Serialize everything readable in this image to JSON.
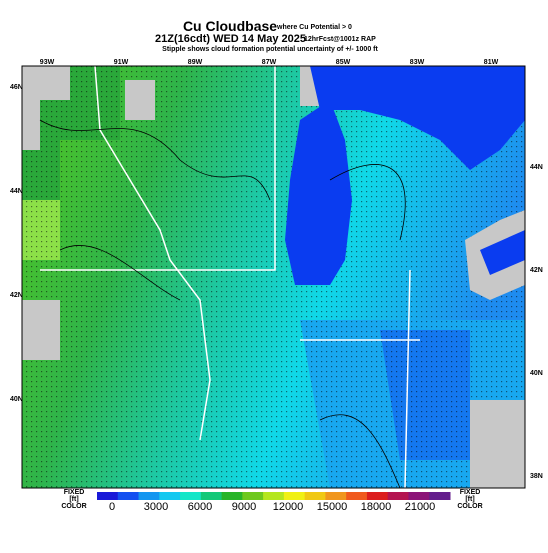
{
  "header": {
    "title": "Cu Cloudbase",
    "title_note": "where Cu Potential > 0",
    "valid": "21Z(16cdt) WED 14 May 2025",
    "forecast": "12hrFcst@1001z RAP",
    "subtitle": "Stipple shows cloud formation potential uncertainty of +/- 1000 ft"
  },
  "map": {
    "top_labels": [
      "93W",
      "91W",
      "89W",
      "87W",
      "85W",
      "83W",
      "81W"
    ],
    "left_labels": [
      "46N",
      "44N",
      "42N",
      "40N"
    ],
    "right_labels": [
      "44N",
      "42N",
      "40N",
      "38N"
    ]
  },
  "colorbar": {
    "left_label": [
      "FIXED",
      "[ft]",
      "COLOR"
    ],
    "right_label": [
      "FIXED",
      "[ft]",
      "COLOR"
    ],
    "ticks": [
      "0",
      "3000",
      "6000",
      "9000",
      "12000",
      "15000",
      "18000",
      "21000"
    ]
  }
}
